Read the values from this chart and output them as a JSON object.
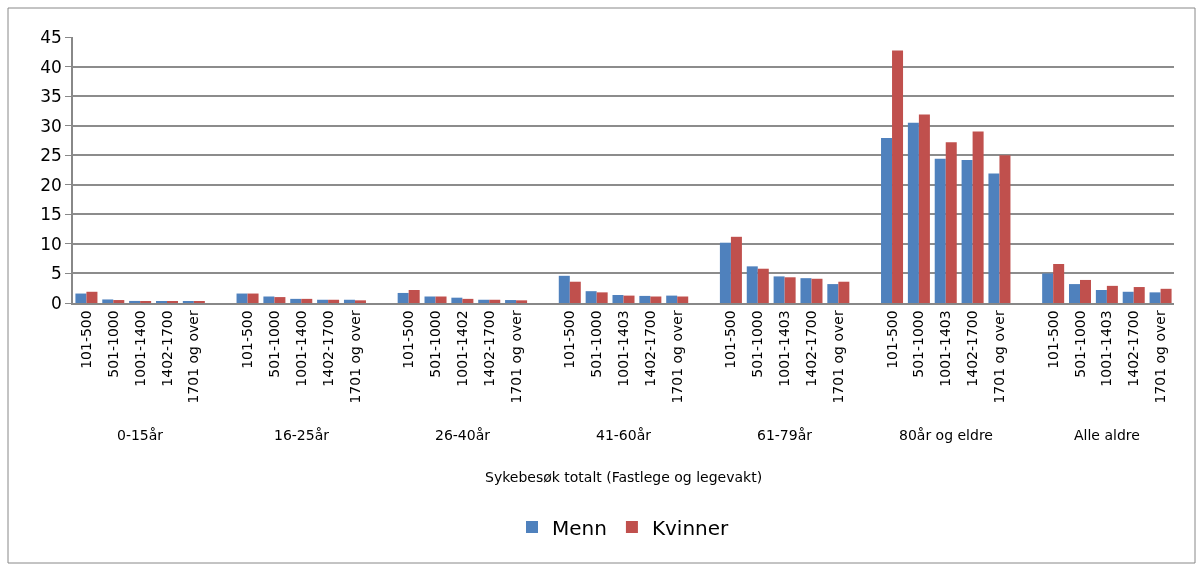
{
  "chart_data": {
    "type": "bar",
    "xlabel": "Sykebesøk totalt (Fastlege og legevakt)",
    "categories": [
      "101-500",
      "501-1000",
      "1001-1400",
      "1402-1700",
      "1701 og over",
      null,
      "101-500",
      "501-1000",
      "1001-1400",
      "1402-1700",
      "1701 og over",
      null,
      "101-500",
      "501-1000",
      "1001-1402",
      "1402-1700",
      "1701 og over",
      null,
      "101-500",
      "501-1000",
      "1001-1403",
      "1402-1700",
      "1701 og over",
      null,
      "101-500",
      "501-1000",
      "1001-1403",
      "1402-1700",
      "1701 og over",
      null,
      "101-500",
      "501-1000",
      "1001-1403",
      "1402-1700",
      "1701 og over",
      null,
      "101-500",
      "501-1000",
      "1001-1403",
      "1402-1700",
      "1701 og over"
    ],
    "annotations": [
      "0-15år",
      "16-25år",
      "26-40år",
      "41-60år",
      "61-79år",
      "80år og eldre",
      "Alle aldre"
    ],
    "series": [
      {
        "name": "Menn",
        "color": "#4f81bd",
        "values": [
          1.6,
          0.6,
          0.35,
          0.3,
          0.3,
          null,
          1.6,
          1.1,
          0.7,
          0.55,
          0.55,
          null,
          1.7,
          1.1,
          0.9,
          0.55,
          0.5,
          null,
          4.6,
          2.0,
          1.35,
          1.2,
          1.25,
          null,
          10.2,
          6.2,
          4.5,
          4.2,
          3.2,
          null,
          27.9,
          30.5,
          24.4,
          24.2,
          21.9,
          null,
          5.0,
          3.2,
          2.2,
          1.9,
          1.8
        ]
      },
      {
        "name": "Kvinner",
        "color": "#c0504d",
        "values": [
          1.9,
          0.5,
          0.3,
          0.2,
          0.2,
          null,
          1.6,
          1.0,
          0.7,
          0.55,
          0.45,
          null,
          2.2,
          1.1,
          0.7,
          0.55,
          0.45,
          null,
          3.6,
          1.8,
          1.25,
          1.1,
          1.1,
          null,
          11.2,
          5.8,
          4.35,
          4.1,
          3.6,
          null,
          42.7,
          31.9,
          27.2,
          29.0,
          25.0,
          null,
          6.6,
          3.9,
          2.9,
          2.7,
          2.4
        ]
      }
    ],
    "ylim": [
      0,
      45
    ],
    "yticks": [
      0,
      5,
      10,
      15,
      20,
      25,
      30,
      35,
      40,
      45
    ],
    "grid": "y",
    "legend": "bottom"
  }
}
